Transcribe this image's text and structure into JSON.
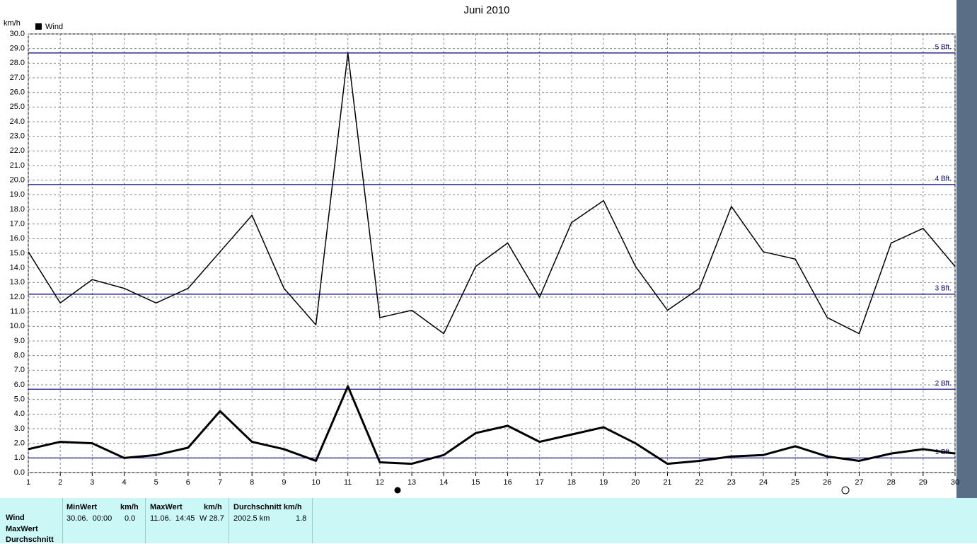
{
  "chart_data": {
    "type": "line",
    "title": "Juni 2010",
    "y_label": "km/h",
    "legend": "Wind",
    "legend_color": "#000000",
    "x": [
      1,
      2,
      3,
      4,
      5,
      6,
      7,
      8,
      9,
      10,
      11,
      12,
      13,
      14,
      15,
      16,
      17,
      18,
      19,
      20,
      21,
      22,
      23,
      24,
      25,
      26,
      27,
      28,
      29,
      30
    ],
    "xlim": [
      1,
      30
    ],
    "xticks": [
      1,
      2,
      3,
      4,
      5,
      6,
      7,
      8,
      9,
      10,
      11,
      12,
      13,
      14,
      15,
      16,
      17,
      18,
      19,
      20,
      21,
      22,
      23,
      24,
      25,
      26,
      27,
      28,
      29,
      30
    ],
    "ylim": [
      0,
      30
    ],
    "yticks": [
      {
        "value": 0,
        "label": "0.0"
      },
      {
        "value": 1,
        "label": "1.0"
      },
      {
        "value": 2,
        "label": "2.0"
      },
      {
        "value": 3,
        "label": "3.0"
      },
      {
        "value": 4,
        "label": "4.0"
      },
      {
        "value": 5,
        "label": "5.0"
      },
      {
        "value": 6,
        "label": "6.0"
      },
      {
        "value": 7,
        "label": "7.0"
      },
      {
        "value": 8,
        "label": "8.0"
      },
      {
        "value": 9,
        "label": "9.0"
      },
      {
        "value": 10,
        "label": "10.0"
      },
      {
        "value": 11,
        "label": "11.0"
      },
      {
        "value": 12,
        "label": "12.0"
      },
      {
        "value": 13,
        "label": "13.0"
      },
      {
        "value": 14,
        "label": "14.0"
      },
      {
        "value": 15,
        "label": "15.0"
      },
      {
        "value": 16,
        "label": "16.0"
      },
      {
        "value": 17,
        "label": "17.0"
      },
      {
        "value": 18,
        "label": "18.0"
      },
      {
        "value": 19,
        "label": "19.0"
      },
      {
        "value": 20,
        "label": "20.0"
      },
      {
        "value": 21,
        "label": "21.0"
      },
      {
        "value": 22,
        "label": "22.0"
      },
      {
        "value": 23,
        "label": "23.0"
      },
      {
        "value": 24,
        "label": "24.0"
      },
      {
        "value": 25,
        "label": "25.0"
      },
      {
        "value": 26,
        "label": "26.0"
      },
      {
        "value": 27,
        "label": "27.0"
      },
      {
        "value": 28,
        "label": "28.0"
      },
      {
        "value": 29,
        "label": "29.0"
      },
      {
        "value": 30,
        "label": "30.0"
      }
    ],
    "grid": true,
    "series": [
      {
        "color": "#000000",
        "width": 1.5,
        "values": [
          15.1,
          11.6,
          13.2,
          12.6,
          11.6,
          12.6,
          15.1,
          17.6,
          12.6,
          10.1,
          28.7,
          10.6,
          11.1,
          9.5,
          14.1,
          15.7,
          12.0,
          17.1,
          18.6,
          14.1,
          11.1,
          12.6,
          18.2,
          15.1,
          14.6,
          10.6,
          9.5,
          15.7,
          16.7,
          14.1
        ]
      },
      {
        "color": "#000000",
        "width": 3,
        "values": [
          1.6,
          2.1,
          2.0,
          1.0,
          1.2,
          1.7,
          4.2,
          2.1,
          1.6,
          0.8,
          5.9,
          0.7,
          0.6,
          1.2,
          2.7,
          3.2,
          2.1,
          2.6,
          3.1,
          2.0,
          0.6,
          0.8,
          1.1,
          1.2,
          1.8,
          1.1,
          0.8,
          1.3,
          1.6,
          1.3
        ]
      }
    ],
    "reference_lines": [
      {
        "value": 1.0,
        "label": "1 Bft."
      },
      {
        "value": 5.7,
        "label": "2 Bft."
      },
      {
        "value": 12.2,
        "label": "3 Bft."
      },
      {
        "value": 19.7,
        "label": "4 Bft."
      },
      {
        "value": 28.7,
        "label": "5 Bft."
      }
    ],
    "reference_color": "#000080"
  },
  "table": {
    "row_labels": [
      "Wind",
      "MaxWert",
      "Durchschnitt"
    ],
    "columns": [
      {
        "header": "MinWert",
        "unit": "km/h",
        "when": "30.06.  00:00",
        "value": "0.0"
      },
      {
        "header": "MaxWert",
        "unit": "km/h",
        "when": "11.06.  14:45",
        "value": "W 28.7"
      },
      {
        "header": "Durchschnitt km/h",
        "when": "2002.5 km",
        "value": "1.8"
      }
    ]
  }
}
